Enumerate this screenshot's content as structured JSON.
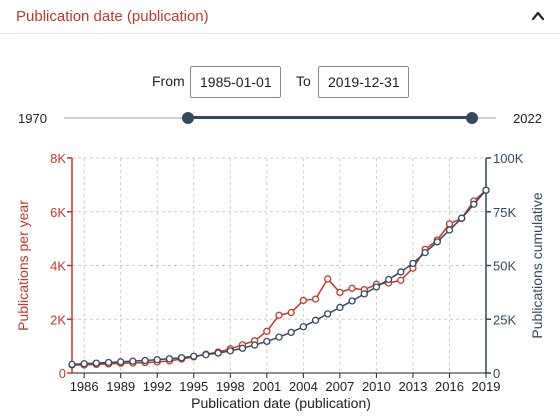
{
  "header": {
    "title": "Publication date (publication)"
  },
  "date_range": {
    "from_label": "From",
    "from_value": "1985-01-01",
    "to_label": "To",
    "to_value": "2019-12-31"
  },
  "slider": {
    "min_label": "1970",
    "max_label": "2022",
    "min": 1970,
    "max": 2022,
    "low": 1985,
    "high": 2019
  },
  "colors": {
    "accent": "#c0392b",
    "dark": "#34495e",
    "grid": "#cccccc"
  },
  "icons": {
    "collapse": "chevron-up-icon"
  },
  "chart_data": {
    "type": "line",
    "xlabel": "Publication date (publication)",
    "ylabel_left": "Publications per year",
    "ylabel_right": "Publications cumulative",
    "x_ticks": [
      "1986",
      "1989",
      "1992",
      "1995",
      "1998",
      "2001",
      "2004",
      "2007",
      "2010",
      "2013",
      "2016",
      "2019"
    ],
    "yleft_ticks": [
      "0",
      "2K",
      "4K",
      "6K",
      "8K"
    ],
    "yright_ticks": [
      "0",
      "25K",
      "50K",
      "75K",
      "100K"
    ],
    "xlim": [
      1985,
      2019
    ],
    "ylim_left": [
      0,
      8000
    ],
    "ylim_right": [
      0,
      100000
    ],
    "grid": true,
    "x": [
      1985,
      1986,
      1987,
      1988,
      1989,
      1990,
      1991,
      1992,
      1993,
      1994,
      1995,
      1996,
      1997,
      1998,
      1999,
      2000,
      2001,
      2002,
      2003,
      2004,
      2005,
      2006,
      2007,
      2008,
      2009,
      2010,
      2011,
      2012,
      2013,
      2014,
      2015,
      2016,
      2017,
      2018,
      2019
    ],
    "series": [
      {
        "name": "Publications per year",
        "axis": "left",
        "color": "#c0392b",
        "values": [
          300,
          300,
          320,
          340,
          360,
          370,
          390,
          410,
          450,
          520,
          600,
          700,
          780,
          900,
          1050,
          1200,
          1550,
          2150,
          2250,
          2700,
          2750,
          3500,
          3000,
          3150,
          3100,
          3300,
          3350,
          3450,
          3900,
          4600,
          4950,
          5550,
          5750,
          6400,
          6800
        ]
      },
      {
        "name": "Publications cumulative",
        "axis": "right",
        "color": "#34495e",
        "values": [
          4000,
          4300,
          4600,
          4900,
          5200,
          5500,
          5800,
          6200,
          6600,
          7100,
          7800,
          8500,
          9300,
          10300,
          11500,
          13000,
          14700,
          16700,
          18900,
          21500,
          24500,
          27500,
          30500,
          33500,
          36800,
          40000,
          43500,
          47000,
          51000,
          56000,
          61000,
          66500,
          72000,
          78500,
          85000
        ]
      }
    ]
  }
}
